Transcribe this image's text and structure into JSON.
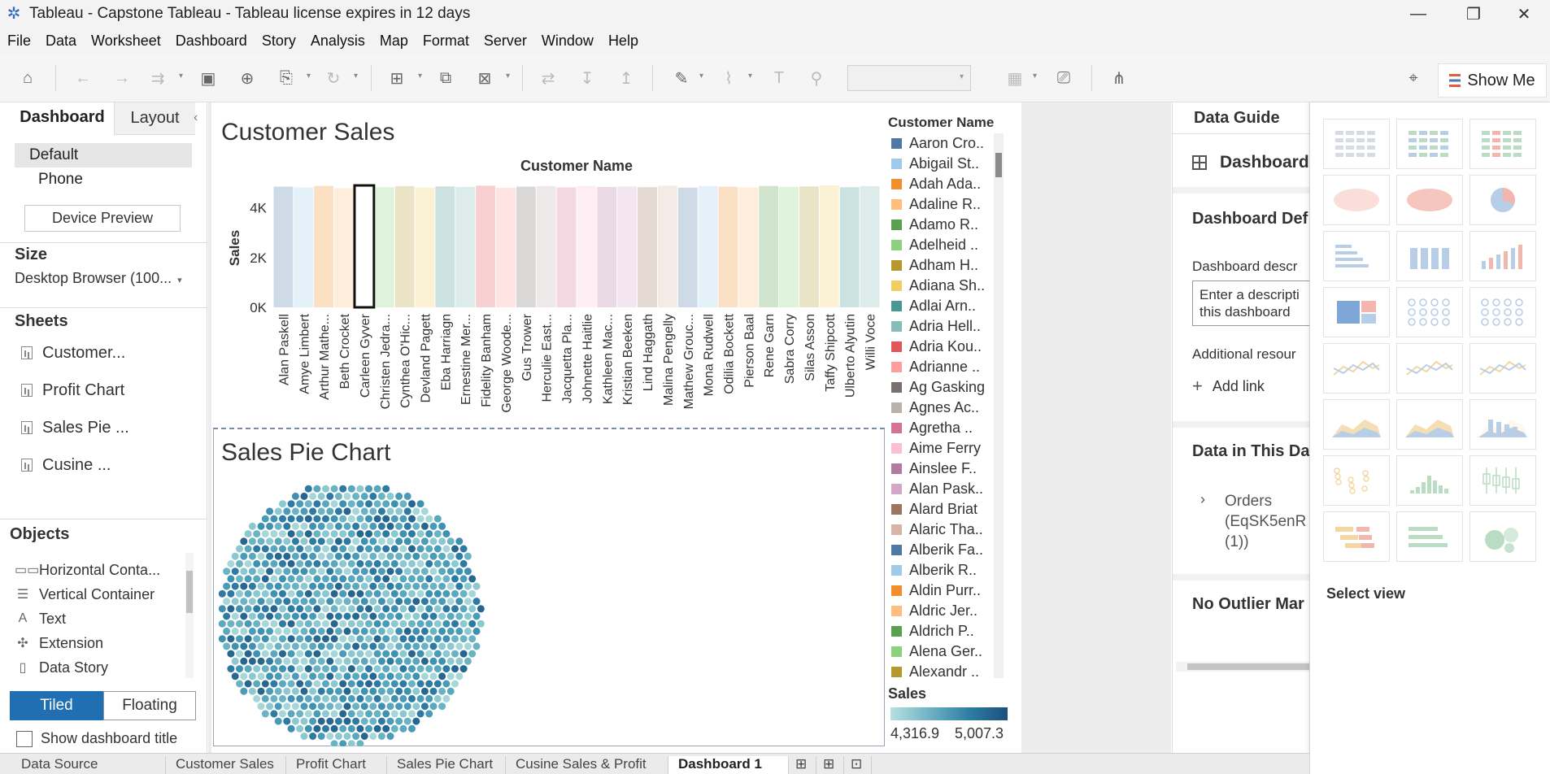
{
  "window": {
    "title": "Tableau - Capstone Tableau - Tableau license expires in 12 days"
  },
  "menu": [
    "File",
    "Data",
    "Worksheet",
    "Dashboard",
    "Story",
    "Analysis",
    "Map",
    "Format",
    "Server",
    "Window",
    "Help"
  ],
  "toolbar": {
    "show_me_label": "Show Me"
  },
  "left_panel": {
    "tabs": [
      "Dashboard",
      "Layout"
    ],
    "devices": [
      "Default",
      "Phone"
    ],
    "device_preview_label": "Device Preview",
    "size_title": "Size",
    "size_value": "Desktop Browser (100...",
    "sheets_title": "Sheets",
    "sheets": [
      "Customer...",
      "Profit Chart",
      "Sales Pie ...",
      "Cusine ..."
    ],
    "objects_title": "Objects",
    "objects": [
      "Horizontal Conta...",
      "Vertical Container",
      "Text",
      "Extension",
      "Data Story"
    ],
    "layout_modes": [
      "Tiled",
      "Floating"
    ],
    "show_title_label": "Show dashboard title"
  },
  "dashboard": {
    "customer_sales_title": "Customer Sales",
    "pie_title": "Sales Pie Chart"
  },
  "chart_data": {
    "type": "bar",
    "title": "Customer Name",
    "xlabel": "",
    "ylabel": "Sales",
    "yticks": [
      "0K",
      "2K",
      "4K"
    ],
    "ylim": [
      0,
      5000
    ],
    "categories": [
      "Alan Paskell",
      "Amye Limbert",
      "Arthur Mathe...",
      "Beth Crocket",
      "Carleen Gyver",
      "Christen Jedra...",
      "Cynthea O'Hic...",
      "Devland Pagett",
      "Eba Harriagn",
      "Ernestine Mer...",
      "Fidelity Banham",
      "George Woode...",
      "Gus Trower",
      "Herculie East...",
      "Jacquetta Pla...",
      "Johnette Haitlie",
      "Kathleen Mac...",
      "Kristian Beeken",
      "Lind Haggath",
      "Malina Pengelly",
      "Mathew Grouc...",
      "Mona Rudwell",
      "Odilia Bockett",
      "Pierson Baal",
      "Rene Garn",
      "Sabra Corry",
      "Silas Asson",
      "Taffy Shipcott",
      "Ulberto Alyutin",
      "Willi Voce"
    ],
    "values": [
      4850,
      4820,
      4880,
      4790,
      4900,
      4830,
      4870,
      4810,
      4860,
      4840,
      4890,
      4800,
      4850,
      4870,
      4820,
      4880,
      4840,
      4860,
      4830,
      4890,
      4810,
      4870,
      4850,
      4820,
      4880,
      4840,
      4860,
      4900,
      4830,
      4870
    ],
    "highlighted_category": "Carleen Gyver"
  },
  "legend": {
    "title": "Customer Name",
    "items": [
      {
        "label": "Aaron Cro..",
        "color": "#4e79a7"
      },
      {
        "label": "Abigail St..",
        "color": "#a0cbe8"
      },
      {
        "label": "Adah Ada..",
        "color": "#f28e2b"
      },
      {
        "label": "Adaline R..",
        "color": "#ffbe7d"
      },
      {
        "label": "Adamo R..",
        "color": "#59a14f"
      },
      {
        "label": "Adelheid ..",
        "color": "#8cd17d"
      },
      {
        "label": "Adham H..",
        "color": "#b6992d"
      },
      {
        "label": "Adiana Sh..",
        "color": "#f1ce63"
      },
      {
        "label": "Adlai Arn..",
        "color": "#499894"
      },
      {
        "label": "Adria Hell..",
        "color": "#86bcb6"
      },
      {
        "label": "Adria Kou..",
        "color": "#e15759"
      },
      {
        "label": "Adrianne ..",
        "color": "#ff9d9a"
      },
      {
        "label": "Ag Gasking",
        "color": "#79706e"
      },
      {
        "label": "Agnes Ac..",
        "color": "#bab0ac"
      },
      {
        "label": "Agretha ..",
        "color": "#d37295"
      },
      {
        "label": "Aime Ferry",
        "color": "#fabfd2"
      },
      {
        "label": "Ainslee F..",
        "color": "#b07aa1"
      },
      {
        "label": "Alan Pask..",
        "color": "#d4a6c8"
      },
      {
        "label": "Alard Briat",
        "color": "#9d7660"
      },
      {
        "label": "Alaric Tha..",
        "color": "#d7b5a6"
      },
      {
        "label": "Alberik Fa..",
        "color": "#4e79a7"
      },
      {
        "label": "Alberik R..",
        "color": "#a0cbe8"
      },
      {
        "label": "Aldin Purr..",
        "color": "#f28e2b"
      },
      {
        "label": "Aldric Jer..",
        "color": "#ffbe7d"
      },
      {
        "label": "Aldrich P..",
        "color": "#59a14f"
      },
      {
        "label": "Alena Ger..",
        "color": "#8cd17d"
      },
      {
        "label": "Alexandr ..",
        "color": "#b6992d"
      }
    ]
  },
  "sales_legend": {
    "title": "Sales",
    "min": "4,316.9",
    "max": "5,007.3"
  },
  "data_guide": {
    "title": "Data Guide",
    "dashboard_label": "Dashboard",
    "definition_title": "Dashboard Def",
    "description_label": "Dashboard descr",
    "description_placeholder": "Enter a descripti this dashboard",
    "resources_label": "Additional resour",
    "add_link_label": "Add link",
    "data_title": "Data in This Da",
    "data_source": "Orders (EqSK5enR (1))",
    "outlier_title": "No Outlier Mar"
  },
  "show_me": {
    "select_view_label": "Select view"
  },
  "bottom_tabs": [
    "Data Source",
    "Customer Sales",
    "Profit Chart",
    "Sales Pie Chart",
    "Cusine Sales & Profit",
    "Dashboard 1"
  ],
  "active_bottom_tab": "Dashboard 1"
}
